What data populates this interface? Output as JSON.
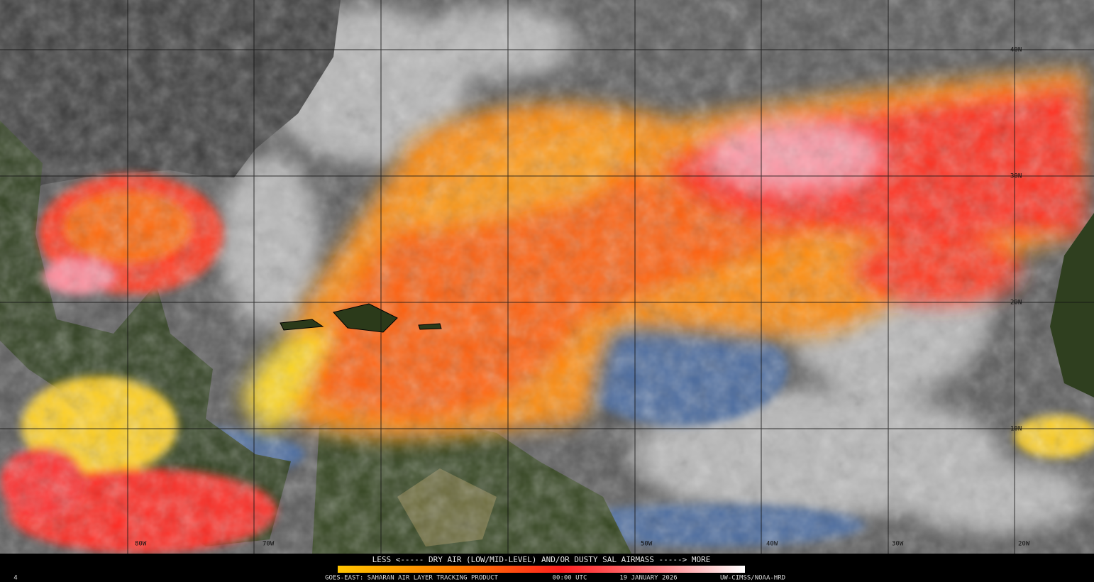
{
  "legend": {
    "caption": "LESS <----- DRY AIR (LOW/MID-LEVEL) AND/OR DUSTY SAL AIRMASS -----> MORE"
  },
  "footer": {
    "frame": "4",
    "product": "GOES-EAST: SAHARAN AIR LAYER TRACKING PRODUCT",
    "time": "00:00 UTC",
    "date": "19 JANUARY 2026",
    "credit": "UW-CIMSS/NOAA-HRD"
  },
  "grid_labels": {
    "longitude": [
      "80W",
      "70W",
      "50W",
      "40W",
      "30W",
      "20W"
    ],
    "latitude": [
      "40N",
      "30N",
      "20N",
      "10N"
    ]
  }
}
